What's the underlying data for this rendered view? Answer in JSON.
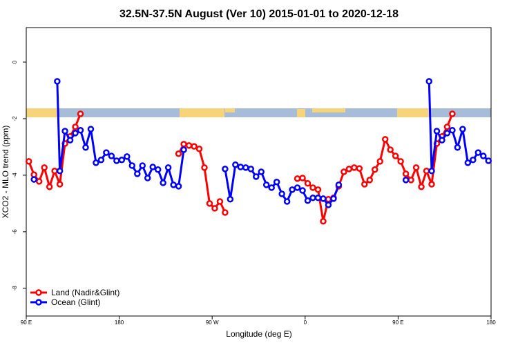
{
  "chart_data": {
    "type": "line",
    "title": "32.5N-37.5N August (Ver 10)   2015-01-01 to 2020-12-18",
    "xlabel": "Longitude (deg E)",
    "ylabel": "XCO2 - MLO trend (ppm)",
    "xlim": [
      90,
      540
    ],
    "ylim": [
      -8.98,
      1.22
    ],
    "xticks": [
      {
        "value": 90,
        "label": "90 E"
      },
      {
        "value": 180,
        "label": "180"
      },
      {
        "value": 270,
        "label": "90 W"
      },
      {
        "value": 360,
        "label": "0"
      },
      {
        "value": 450,
        "label": "90 E"
      },
      {
        "value": 540,
        "label": "180"
      }
    ],
    "yticks": [
      0,
      -2,
      -4,
      -6,
      -8
    ],
    "legend": "bottomleft",
    "series": [
      {
        "name": "Land (Nadir&Glint)",
        "color": "#ff0000",
        "x": [
          92.5,
          97.5,
          102.5,
          107.5,
          112.5,
          117.5,
          122.5,
          127.5,
          132.5,
          137.5,
          142.5,
          147.5,
          237.5,
          242.5,
          247.5,
          252.5,
          257.5,
          262.5,
          267.5,
          272.5,
          277.5,
          282.5,
          287.5,
          352.5,
          357.5,
          362.5,
          367.5,
          372.5,
          377.5,
          382.5,
          387.5,
          392.5,
          397.5,
          402.5,
          407.5,
          412.5,
          417.5,
          422.5,
          427.5,
          432.5,
          437.5,
          442.5,
          447.5,
          452.5,
          457.5,
          462.5,
          467.5,
          472.5,
          477.5,
          482.5,
          487.5,
          492.5,
          497.5,
          502.5
        ],
        "values": [
          -3.51,
          -3.98,
          -4.22,
          -3.73,
          -4.41,
          -3.85,
          -4.32,
          -2.88,
          -2.63,
          -2.29,
          -1.83,
          null,
          -3.24,
          -2.9,
          -2.95,
          -2.98,
          -3.07,
          -3.73,
          -5.0,
          -5.17,
          -4.93,
          -5.32,
          null,
          -4.12,
          -4.1,
          -4.29,
          -4.44,
          -4.51,
          -5.63,
          -4.85,
          -4.8,
          -4.39,
          -3.88,
          -3.78,
          -3.73,
          -3.76,
          -4.32,
          -4.17,
          -3.8,
          -3.51,
          -2.73,
          -3.1,
          -3.32,
          -3.51,
          -3.95,
          -4.17,
          -3.73,
          -4.41,
          -3.85,
          -4.32,
          -2.88,
          -2.63,
          -2.29,
          -1.83
        ]
      },
      {
        "name": "Ocean (Glint)",
        "color": "#0000ff",
        "x": [
          97.5,
          102.5,
          120,
          122.5,
          127.5,
          132.5,
          137.5,
          142.5,
          147.5,
          152.5,
          157.5,
          162.5,
          167.5,
          172.5,
          177.5,
          182.5,
          187.5,
          192.5,
          197.5,
          202.5,
          207.5,
          212.5,
          217.5,
          222.5,
          227.5,
          232.5,
          237.5,
          242.5,
          247.5,
          282.5,
          287.5,
          292.5,
          297.5,
          302.5,
          307.5,
          312.5,
          317.5,
          322.5,
          327.5,
          332.5,
          337.5,
          342.5,
          347.5,
          352.5,
          357.5,
          362.5,
          367.5,
          372.5,
          377.5,
          382.5,
          387.5,
          392.5,
          397.5,
          457.5,
          462.5,
          480,
          482.5,
          487.5,
          492.5,
          497.5,
          502.5,
          507.5,
          512.5,
          517.5,
          522.5,
          527.5,
          532.5,
          537.5
        ],
        "values": [
          -4.15,
          null,
          -0.68,
          -3.85,
          -2.44,
          -2.76,
          -2.51,
          -2.41,
          -3.02,
          -2.37,
          -3.56,
          -3.46,
          -3.2,
          -3.32,
          -3.49,
          -3.46,
          -3.34,
          -3.66,
          -3.95,
          -3.66,
          -4.1,
          -3.71,
          -3.8,
          -4.27,
          -3.73,
          -4.34,
          -4.39,
          -3.1,
          null,
          -3.78,
          -4.85,
          -3.63,
          -3.71,
          -3.73,
          -3.78,
          -4.05,
          -3.88,
          -4.34,
          -4.44,
          -4.24,
          -4.66,
          -4.93,
          -4.51,
          -4.44,
          -4.54,
          -4.9,
          -4.8,
          -4.8,
          -4.83,
          -5.05,
          -4.83,
          -4.34,
          null,
          -4.17,
          null,
          -0.68,
          -3.85,
          -2.44,
          -2.76,
          -2.51,
          -2.41,
          -3.02,
          -2.37,
          -3.56,
          -3.46,
          -3.2,
          -3.32,
          -3.49
        ]
      }
    ]
  }
}
